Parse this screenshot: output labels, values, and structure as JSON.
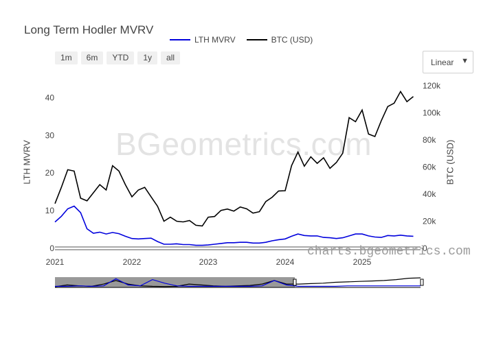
{
  "title": "Long Term Hodler MVRV",
  "legend": [
    {
      "name": "LTH MVRV",
      "color": "#0000dd"
    },
    {
      "name": "BTC (USD)",
      "color": "#000000"
    }
  ],
  "range_buttons": [
    "1m",
    "6m",
    "YTD",
    "1y",
    "all"
  ],
  "scale_select": {
    "value": "Linear"
  },
  "watermark": "BGeometrics.com",
  "source_mark": "charts.bgeometrics.com",
  "chart_data": {
    "type": "line",
    "title": "Long Term Hodler MVRV",
    "x_start": "2021-01",
    "x_end": "2025-09",
    "x_ticks": [
      "2021",
      "2022",
      "2023",
      "2024",
      "2025"
    ],
    "y_left": {
      "label": "LTH MVRV",
      "range": [
        0,
        45
      ],
      "ticks": [
        "0",
        "10",
        "20",
        "30",
        "40"
      ]
    },
    "y_right": {
      "label": "BTC (USD)",
      "range": [
        0,
        125000
      ],
      "ticks": [
        "0",
        "20k",
        "40k",
        "60k",
        "80k",
        "100k",
        "120k"
      ]
    },
    "x": [
      "2021-01",
      "2021-02",
      "2021-03",
      "2021-04",
      "2021-05",
      "2021-06",
      "2021-07",
      "2021-08",
      "2021-09",
      "2021-10",
      "2021-11",
      "2021-12",
      "2022-01",
      "2022-02",
      "2022-03",
      "2022-04",
      "2022-05",
      "2022-06",
      "2022-07",
      "2022-08",
      "2022-09",
      "2022-10",
      "2022-11",
      "2022-12",
      "2023-01",
      "2023-02",
      "2023-03",
      "2023-04",
      "2023-05",
      "2023-06",
      "2023-07",
      "2023-08",
      "2023-09",
      "2023-10",
      "2023-11",
      "2023-12",
      "2024-01",
      "2024-02",
      "2024-03",
      "2024-04",
      "2024-05",
      "2024-06",
      "2024-07",
      "2024-08",
      "2024-09",
      "2024-10",
      "2024-11",
      "2024-12",
      "2025-01",
      "2025-02",
      "2025-03",
      "2025-04",
      "2025-05",
      "2025-06",
      "2025-07",
      "2025-08",
      "2025-09"
    ],
    "series": [
      {
        "name": "LTH MVRV",
        "axis": "left",
        "color": "#0000dd",
        "values": [
          7.0,
          8.5,
          10.5,
          11.2,
          9.5,
          5.2,
          4.0,
          4.3,
          3.8,
          4.2,
          3.9,
          3.2,
          2.6,
          2.5,
          2.6,
          2.7,
          1.8,
          1.1,
          1.1,
          1.2,
          1.0,
          1.0,
          0.8,
          0.8,
          0.9,
          1.1,
          1.3,
          1.5,
          1.5,
          1.6,
          1.6,
          1.4,
          1.4,
          1.6,
          2.0,
          2.3,
          2.5,
          3.2,
          3.8,
          3.4,
          3.3,
          3.3,
          2.9,
          2.8,
          2.6,
          2.8,
          3.3,
          3.8,
          3.8,
          3.3,
          3.0,
          2.9,
          3.4,
          3.3,
          3.5,
          3.3,
          3.2
        ]
      },
      {
        "name": "BTC (USD)",
        "axis": "right",
        "color": "#000000",
        "values": [
          33000,
          45000,
          58000,
          57000,
          37000,
          35000,
          41000,
          47000,
          43000,
          61000,
          57000,
          47000,
          38000,
          43000,
          45000,
          38000,
          31000,
          20000,
          23000,
          20000,
          19500,
          20500,
          17000,
          16500,
          23000,
          23500,
          28000,
          29000,
          27500,
          30500,
          29200,
          26000,
          27000,
          34500,
          37700,
          42300,
          42500,
          61000,
          71000,
          60600,
          67500,
          62700,
          66800,
          59000,
          63300,
          70200,
          96400,
          93400,
          102000,
          84300,
          82500,
          94200,
          104600,
          107100,
          115700,
          108200,
          112000
        ]
      }
    ]
  }
}
